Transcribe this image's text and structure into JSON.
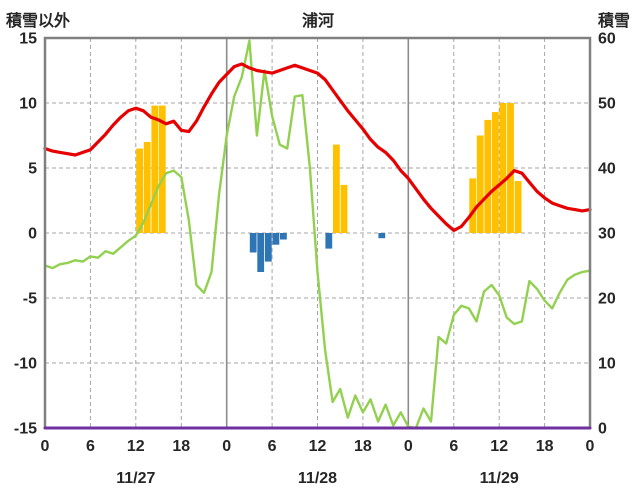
{
  "header": {
    "left_axis_label": "積雪以外",
    "title": "浦河",
    "right_axis_label": "積雪"
  },
  "colors": {
    "red": "#e60000",
    "green": "#92d050",
    "orange": "#ffc000",
    "blue": "#2e75b6",
    "purple": "#7030a0",
    "frame": "#808080",
    "grid": "#a6a6a6",
    "day_line": "#8c8c8c",
    "text": "#262626"
  },
  "chart_data": {
    "type": "line",
    "title": "浦河",
    "x_range": [
      0,
      72
    ],
    "day_boundaries": [
      24,
      48
    ],
    "left_axis": {
      "label": "積雪以外",
      "min": -15,
      "max": 15,
      "ticks": [
        15,
        10,
        5,
        0,
        -5,
        -10,
        -15
      ]
    },
    "right_axis": {
      "label": "積雪",
      "min": 0,
      "max": 60,
      "ticks": [
        60,
        50,
        40,
        30,
        20,
        10,
        0
      ]
    },
    "x_ticks": [
      {
        "h": 0,
        "label": "0"
      },
      {
        "h": 6,
        "label": "6"
      },
      {
        "h": 12,
        "label": "12"
      },
      {
        "h": 18,
        "label": "18"
      },
      {
        "h": 24,
        "label": "0"
      },
      {
        "h": 30,
        "label": "6"
      },
      {
        "h": 36,
        "label": "12"
      },
      {
        "h": 42,
        "label": "18"
      },
      {
        "h": 48,
        "label": "0"
      },
      {
        "h": 54,
        "label": "6"
      },
      {
        "h": 60,
        "label": "12"
      },
      {
        "h": 66,
        "label": "18"
      },
      {
        "h": 72,
        "label": "0"
      }
    ],
    "date_labels": [
      {
        "h": 12,
        "label": "11/27"
      },
      {
        "h": 36,
        "label": "11/28"
      },
      {
        "h": 60,
        "label": "11/29"
      }
    ],
    "series": [
      {
        "name": "orange-bars",
        "type": "bar",
        "axis": "left",
        "color": "#ffc000",
        "points": [
          {
            "h": 13,
            "v": 6.5
          },
          {
            "h": 14,
            "v": 7.0
          },
          {
            "h": 15,
            "v": 9.8
          },
          {
            "h": 16,
            "v": 9.8
          },
          {
            "h": 39,
            "v": 6.8
          },
          {
            "h": 40,
            "v": 3.7
          },
          {
            "h": 57,
            "v": 4.2
          },
          {
            "h": 58,
            "v": 7.5
          },
          {
            "h": 59,
            "v": 8.7
          },
          {
            "h": 60,
            "v": 9.3
          },
          {
            "h": 61,
            "v": 10.0
          },
          {
            "h": 62,
            "v": 10.0
          },
          {
            "h": 63,
            "v": 4.0
          }
        ]
      },
      {
        "name": "blue-bars",
        "type": "bar",
        "axis": "left",
        "color": "#2e75b6",
        "points": [
          {
            "h": 28,
            "v": -1.5
          },
          {
            "h": 29,
            "v": -3.0
          },
          {
            "h": 30,
            "v": -2.2
          },
          {
            "h": 31,
            "v": -0.9
          },
          {
            "h": 32,
            "v": -0.5
          },
          {
            "h": 38,
            "v": -1.2
          },
          {
            "h": 45,
            "v": -0.4
          }
        ]
      },
      {
        "name": "green-line",
        "type": "line",
        "axis": "left",
        "color": "#92d050",
        "width": 2.4,
        "start_hour": 0,
        "step": 1,
        "values": [
          -2.5,
          -2.7,
          -2.4,
          -2.3,
          -2.1,
          -2.2,
          -1.8,
          -1.9,
          -1.4,
          -1.6,
          -1.1,
          -0.6,
          -0.2,
          0.8,
          2.2,
          3.6,
          4.6,
          4.8,
          4.3,
          1.0,
          -4.0,
          -4.6,
          -3.0,
          3.0,
          7.5,
          10.5,
          12.0,
          14.8,
          7.5,
          12.5,
          9.0,
          6.8,
          6.5,
          10.5,
          10.6,
          5.0,
          -3.0,
          -9.0,
          -13.0,
          -12.0,
          -14.2,
          -12.5,
          -13.8,
          -12.8,
          -14.5,
          -13.2,
          -14.8,
          -13.8,
          -14.9,
          -15.0,
          -13.5,
          -14.5,
          -8.0,
          -8.5,
          -6.3,
          -5.6,
          -5.8,
          -6.8,
          -4.5,
          -4.0,
          -4.8,
          -6.5,
          -7.0,
          -6.8,
          -3.7,
          -4.3,
          -5.2,
          -5.8,
          -4.6,
          -3.6,
          -3.2,
          -3.0,
          -2.9
        ]
      },
      {
        "name": "red-line",
        "type": "line",
        "axis": "left",
        "color": "#e60000",
        "width": 3.2,
        "start_hour": 0,
        "step": 1,
        "values": [
          6.5,
          6.3,
          6.2,
          6.1,
          6.0,
          6.2,
          6.4,
          7.0,
          7.6,
          8.3,
          8.9,
          9.4,
          9.6,
          9.4,
          8.9,
          8.7,
          8.4,
          8.6,
          7.9,
          7.8,
          8.6,
          9.7,
          10.7,
          11.6,
          12.2,
          12.8,
          13.0,
          12.7,
          12.5,
          12.4,
          12.3,
          12.5,
          12.7,
          12.9,
          12.7,
          12.5,
          12.3,
          11.8,
          11.0,
          10.2,
          9.4,
          8.7,
          8.0,
          7.2,
          6.6,
          6.2,
          5.6,
          4.8,
          4.2,
          3.4,
          2.6,
          1.9,
          1.3,
          0.7,
          0.2,
          0.5,
          1.2,
          2.0,
          2.6,
          3.2,
          3.7,
          4.2,
          4.8,
          4.6,
          3.9,
          3.2,
          2.7,
          2.3,
          2.1,
          1.9,
          1.8,
          1.7,
          1.8
        ]
      },
      {
        "name": "purple-line",
        "type": "line",
        "axis": "right",
        "color": "#7030a0",
        "width": 3,
        "layer": "top",
        "start_hour": 0,
        "step": 72,
        "values": [
          0,
          0
        ]
      }
    ]
  }
}
